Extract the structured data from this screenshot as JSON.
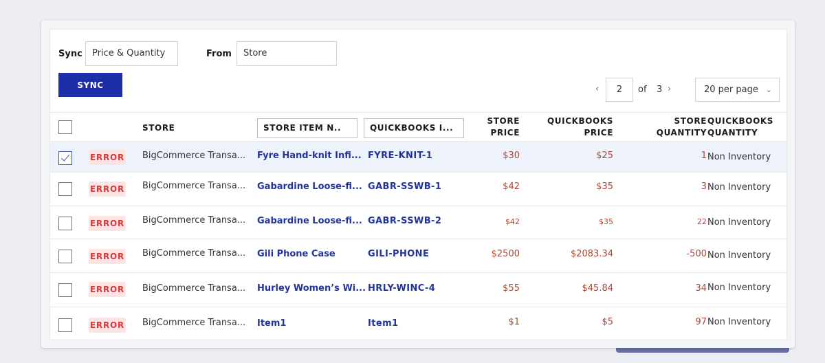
{
  "toolbar": {
    "sync_label": "Sync",
    "sync_value": "Price & Quantity",
    "from_label": "From",
    "from_value": "Store",
    "sync_button": "SYNC"
  },
  "pagination": {
    "prev_icon": "chevron-left-icon",
    "current_page": "2",
    "of_label": "of",
    "total_pages": "3",
    "next_icon": "chevron-right-icon",
    "per_page": "20 per page"
  },
  "table": {
    "headers": {
      "store": "STORE",
      "store_item_name": "STORE ITEM N..",
      "quickbooks_id": "QUICKBOOKS I...",
      "store_price": [
        "STORE",
        "PRICE"
      ],
      "quickbooks_price": [
        "QUICKBOOKS",
        "PRICE"
      ],
      "store_quantity": [
        "STORE",
        "QUANTITY"
      ],
      "quickbooks_quantity": [
        "QUICKBOOKS",
        "QUANTITY"
      ]
    },
    "rows": [
      {
        "checked": true,
        "status": "ERROR",
        "store": "BigCommerce Transa...",
        "item_name": "Fyre Hand-knit Infi...",
        "qb_id": "FYRE-KNIT-1",
        "store_price": "$30",
        "qb_price": "$25",
        "store_qty": "1",
        "qb_qty": "Non Inventory"
      },
      {
        "checked": false,
        "status": "ERROR",
        "store": "BigCommerce Transa...",
        "item_name": "Gabardine Loose-fi...",
        "qb_id": "GABR-SSWB-1",
        "store_price": "$42",
        "qb_price": "$35",
        "store_qty": "3",
        "qb_qty": "Non Inventory"
      },
      {
        "checked": false,
        "status": "ERROR",
        "store": "BigCommerce Transa...",
        "item_name": "Gabardine Loose-fi...",
        "qb_id": "GABR-SSWB-2",
        "store_price": "$42",
        "qb_price": "$35",
        "store_qty": "22",
        "qb_qty": "Non Inventory"
      },
      {
        "checked": false,
        "status": "ERROR",
        "store": "BigCommerce Transa...",
        "item_name": "Gili Phone Case",
        "qb_id": "GILI-PHONE",
        "store_price": "$2500",
        "qb_price": "$2083.34",
        "store_qty": "-500",
        "qb_qty": "Non Inventory"
      },
      {
        "checked": false,
        "status": "ERROR",
        "store": "BigCommerce Transa...",
        "item_name": "Hurley Women’s Wi...",
        "qb_id": "HRLY-WINC-4",
        "store_price": "$55",
        "qb_price": "$45.84",
        "store_qty": "34",
        "qb_qty": "Non Inventory"
      },
      {
        "checked": false,
        "status": "ERROR",
        "store": "BigCommerce Transa...",
        "item_name": "Item1",
        "qb_id": "Item1",
        "store_price": "$1",
        "qb_price": "$5",
        "store_qty": "97",
        "qb_qty": "Non Inventory"
      }
    ]
  }
}
